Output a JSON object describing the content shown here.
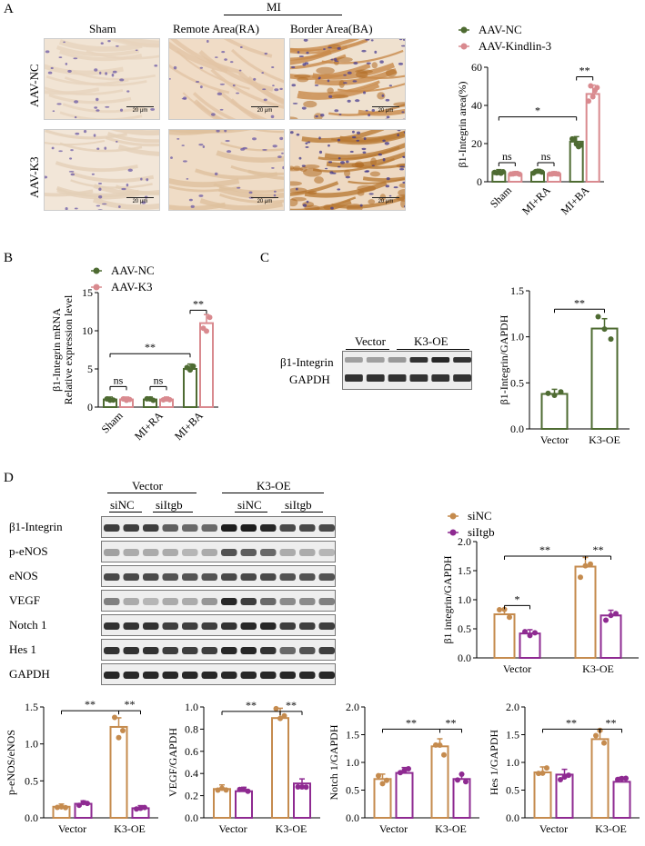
{
  "colors": {
    "nc": "#4e6b32",
    "k3": "#d98a8f",
    "sinc": "#c58b4e",
    "siitgb": "#8e2a91"
  },
  "panelA": {
    "label": "A",
    "mi_header": "MI",
    "col_headers": [
      "Sham",
      "Remote Area(RA)",
      "Border Area(BA)"
    ],
    "row_labels": [
      "AAV-NC",
      "AAV-K3"
    ],
    "scale_text": "20 μm"
  },
  "panelB": {
    "label": "B"
  },
  "panelC": {
    "label": "C",
    "blot_groups": [
      "Vector",
      "K3-OE"
    ],
    "blot_rows": [
      "β1-Integrin",
      "GAPDH"
    ]
  },
  "panelD": {
    "label": "D",
    "top_groups": [
      "Vector",
      "K3-OE"
    ],
    "sub_groups": [
      "siNC",
      "siItgb",
      "siNC",
      "siItgb"
    ],
    "blot_rows": [
      "β1-Integrin",
      "p-eNOS",
      "eNOS",
      "VEGF",
      "Notch 1",
      "Hes 1",
      "GAPDH"
    ]
  },
  "chart_data": [
    {
      "id": "A",
      "type": "bar",
      "categories": [
        "Sham",
        "MI+RA",
        "MI+BA"
      ],
      "series": [
        {
          "name": "AAV-NC",
          "values": [
            5,
            5,
            21
          ]
        },
        {
          "name": "AAV-Kindlin-3",
          "values": [
            4,
            4,
            46
          ]
        }
      ],
      "ylabel": "β1-Integrin area(%)",
      "ylim": [
        0,
        60
      ],
      "yticks": [
        0,
        20,
        40,
        60
      ],
      "annotations": [
        "ns",
        "ns",
        "**",
        "*"
      ],
      "legend": "top-right"
    },
    {
      "id": "B",
      "type": "bar",
      "categories": [
        "Sham",
        "MI+RA",
        "MI+BA"
      ],
      "series": [
        {
          "name": "AAV-NC",
          "values": [
            1,
            1,
            5
          ]
        },
        {
          "name": "AAV-K3",
          "values": [
            1,
            1,
            11
          ]
        }
      ],
      "ylabel": "β1-Integrin mRNA Relative expression level",
      "ylim": [
        0,
        15
      ],
      "yticks": [
        0,
        5,
        10,
        15
      ],
      "annotations": [
        "ns",
        "ns",
        "**",
        "**"
      ],
      "legend": "top-left"
    },
    {
      "id": "C",
      "type": "bar",
      "categories": [
        "Vector",
        "K3-OE"
      ],
      "series": [
        {
          "values": [
            0.38,
            1.09
          ]
        }
      ],
      "ylabel": "β1-Integrin/GAPDH",
      "ylim": [
        0,
        1.5
      ],
      "yticks": [
        "0.0",
        "0.5",
        "1.0",
        "1.5"
      ],
      "annotations": [
        "**"
      ]
    },
    {
      "id": "D1",
      "type": "bar",
      "categories": [
        "Vector",
        "K3-OE"
      ],
      "series": [
        {
          "name": "siNC",
          "values": [
            0.75,
            1.57
          ]
        },
        {
          "name": "siItgb",
          "values": [
            0.42,
            0.73
          ]
        }
      ],
      "ylabel": "β1 integrin/GAPDH",
      "ylim": [
        0,
        2.0
      ],
      "yticks": [
        "0.0",
        "0.5",
        "1.0",
        "1.5",
        "2.0"
      ],
      "annotations": [
        "*",
        "**",
        "**"
      ],
      "legend": "top-left"
    },
    {
      "id": "D2",
      "type": "bar",
      "categories": [
        "Vector",
        "K3-OE"
      ],
      "series": [
        {
          "name": "siNC",
          "values": [
            0.15,
            1.23
          ]
        },
        {
          "name": "siItgb",
          "values": [
            0.19,
            0.13
          ]
        }
      ],
      "ylabel": "p-eNOS/eNOS",
      "ylim": [
        0,
        1.5
      ],
      "yticks": [
        "0.0",
        "0.5",
        "1.0",
        "1.5"
      ],
      "annotations": [
        "**",
        "**"
      ]
    },
    {
      "id": "D3",
      "type": "bar",
      "categories": [
        "Vector",
        "K3-OE"
      ],
      "series": [
        {
          "name": "siNC",
          "values": [
            0.26,
            0.9
          ]
        },
        {
          "name": "siItgb",
          "values": [
            0.24,
            0.31
          ]
        }
      ],
      "ylabel": "VEGF/GAPDH",
      "ylim": [
        0,
        1.0
      ],
      "yticks": [
        "0.0",
        "0.2",
        "0.4",
        "0.6",
        "0.8",
        "1.0"
      ],
      "annotations": [
        "**",
        "**"
      ]
    },
    {
      "id": "D4",
      "type": "bar",
      "categories": [
        "Vector",
        "K3-OE"
      ],
      "series": [
        {
          "name": "siNC",
          "values": [
            0.7,
            1.29
          ]
        },
        {
          "name": "siItgb",
          "values": [
            0.81,
            0.7
          ]
        }
      ],
      "ylabel": "Notch 1/GAPDH",
      "ylim": [
        0,
        2.0
      ],
      "yticks": [
        "0.0",
        "0.5",
        "1.0",
        "1.5",
        "2.0"
      ],
      "annotations": [
        "**",
        "**"
      ]
    },
    {
      "id": "D5",
      "type": "bar",
      "categories": [
        "Vector",
        "K3-OE"
      ],
      "series": [
        {
          "name": "siNC",
          "values": [
            0.82,
            1.42
          ]
        },
        {
          "name": "siItgb",
          "values": [
            0.78,
            0.65
          ]
        }
      ],
      "ylabel": "Hes 1/GAPDH",
      "ylim": [
        0,
        2.0
      ],
      "yticks": [
        "0.0",
        "0.5",
        "1.0",
        "1.5",
        "2.0"
      ],
      "annotations": [
        "**",
        "**"
      ]
    }
  ]
}
